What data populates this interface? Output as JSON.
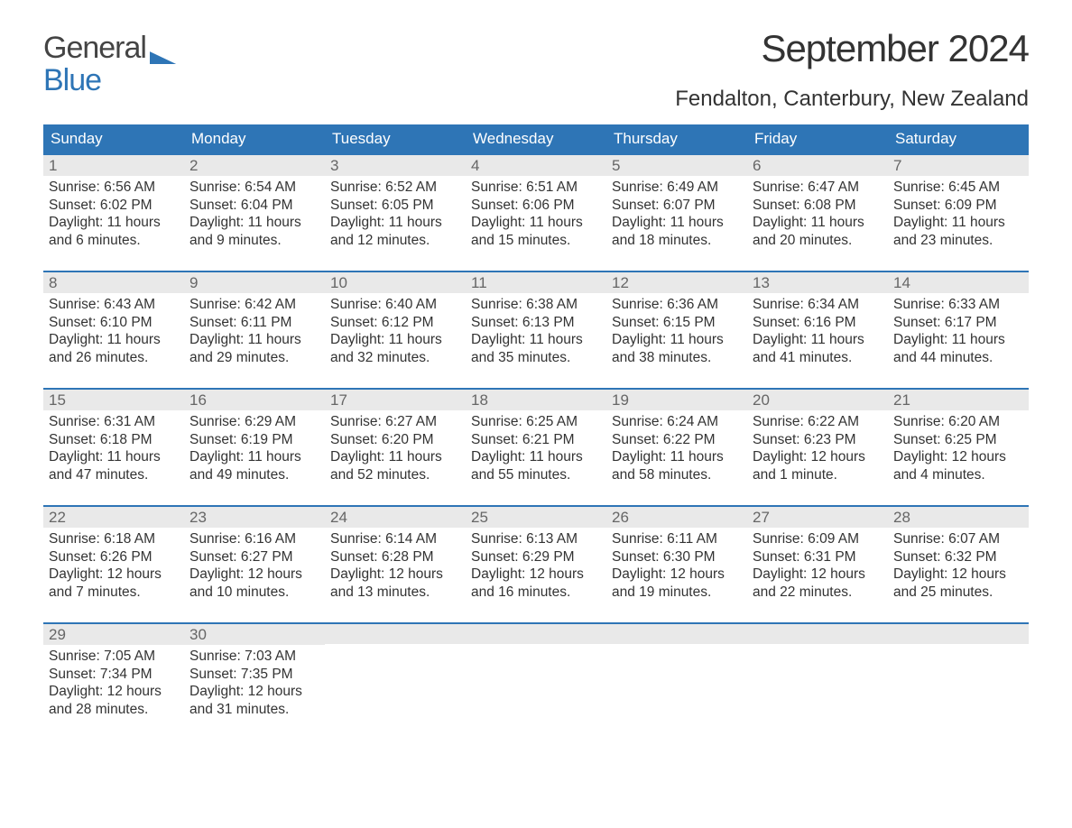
{
  "brand": {
    "top": "General",
    "bottom": "Blue",
    "top_color": "#444444",
    "bottom_color": "#2e75b6"
  },
  "title": "September 2024",
  "location": "Fendalton, Canterbury, New Zealand",
  "colors": {
    "header_bg": "#2e75b6",
    "header_text": "#ffffff",
    "daynum_bg": "#e9e9e9",
    "daynum_text": "#666666",
    "body_text": "#333333",
    "week_divider": "#2e75b6",
    "page_bg": "#ffffff"
  },
  "typography": {
    "title_fontsize": 42,
    "location_fontsize": 24,
    "header_fontsize": 17,
    "body_fontsize": 15.5
  },
  "day_headers": [
    "Sunday",
    "Monday",
    "Tuesday",
    "Wednesday",
    "Thursday",
    "Friday",
    "Saturday"
  ],
  "weeks": [
    [
      {
        "n": "1",
        "sunrise": "Sunrise: 6:56 AM",
        "sunset": "Sunset: 6:02 PM",
        "day1": "Daylight: 11 hours",
        "day2": "and 6 minutes."
      },
      {
        "n": "2",
        "sunrise": "Sunrise: 6:54 AM",
        "sunset": "Sunset: 6:04 PM",
        "day1": "Daylight: 11 hours",
        "day2": "and 9 minutes."
      },
      {
        "n": "3",
        "sunrise": "Sunrise: 6:52 AM",
        "sunset": "Sunset: 6:05 PM",
        "day1": "Daylight: 11 hours",
        "day2": "and 12 minutes."
      },
      {
        "n": "4",
        "sunrise": "Sunrise: 6:51 AM",
        "sunset": "Sunset: 6:06 PM",
        "day1": "Daylight: 11 hours",
        "day2": "and 15 minutes."
      },
      {
        "n": "5",
        "sunrise": "Sunrise: 6:49 AM",
        "sunset": "Sunset: 6:07 PM",
        "day1": "Daylight: 11 hours",
        "day2": "and 18 minutes."
      },
      {
        "n": "6",
        "sunrise": "Sunrise: 6:47 AM",
        "sunset": "Sunset: 6:08 PM",
        "day1": "Daylight: 11 hours",
        "day2": "and 20 minutes."
      },
      {
        "n": "7",
        "sunrise": "Sunrise: 6:45 AM",
        "sunset": "Sunset: 6:09 PM",
        "day1": "Daylight: 11 hours",
        "day2": "and 23 minutes."
      }
    ],
    [
      {
        "n": "8",
        "sunrise": "Sunrise: 6:43 AM",
        "sunset": "Sunset: 6:10 PM",
        "day1": "Daylight: 11 hours",
        "day2": "and 26 minutes."
      },
      {
        "n": "9",
        "sunrise": "Sunrise: 6:42 AM",
        "sunset": "Sunset: 6:11 PM",
        "day1": "Daylight: 11 hours",
        "day2": "and 29 minutes."
      },
      {
        "n": "10",
        "sunrise": "Sunrise: 6:40 AM",
        "sunset": "Sunset: 6:12 PM",
        "day1": "Daylight: 11 hours",
        "day2": "and 32 minutes."
      },
      {
        "n": "11",
        "sunrise": "Sunrise: 6:38 AM",
        "sunset": "Sunset: 6:13 PM",
        "day1": "Daylight: 11 hours",
        "day2": "and 35 minutes."
      },
      {
        "n": "12",
        "sunrise": "Sunrise: 6:36 AM",
        "sunset": "Sunset: 6:15 PM",
        "day1": "Daylight: 11 hours",
        "day2": "and 38 minutes."
      },
      {
        "n": "13",
        "sunrise": "Sunrise: 6:34 AM",
        "sunset": "Sunset: 6:16 PM",
        "day1": "Daylight: 11 hours",
        "day2": "and 41 minutes."
      },
      {
        "n": "14",
        "sunrise": "Sunrise: 6:33 AM",
        "sunset": "Sunset: 6:17 PM",
        "day1": "Daylight: 11 hours",
        "day2": "and 44 minutes."
      }
    ],
    [
      {
        "n": "15",
        "sunrise": "Sunrise: 6:31 AM",
        "sunset": "Sunset: 6:18 PM",
        "day1": "Daylight: 11 hours",
        "day2": "and 47 minutes."
      },
      {
        "n": "16",
        "sunrise": "Sunrise: 6:29 AM",
        "sunset": "Sunset: 6:19 PM",
        "day1": "Daylight: 11 hours",
        "day2": "and 49 minutes."
      },
      {
        "n": "17",
        "sunrise": "Sunrise: 6:27 AM",
        "sunset": "Sunset: 6:20 PM",
        "day1": "Daylight: 11 hours",
        "day2": "and 52 minutes."
      },
      {
        "n": "18",
        "sunrise": "Sunrise: 6:25 AM",
        "sunset": "Sunset: 6:21 PM",
        "day1": "Daylight: 11 hours",
        "day2": "and 55 minutes."
      },
      {
        "n": "19",
        "sunrise": "Sunrise: 6:24 AM",
        "sunset": "Sunset: 6:22 PM",
        "day1": "Daylight: 11 hours",
        "day2": "and 58 minutes."
      },
      {
        "n": "20",
        "sunrise": "Sunrise: 6:22 AM",
        "sunset": "Sunset: 6:23 PM",
        "day1": "Daylight: 12 hours",
        "day2": "and 1 minute."
      },
      {
        "n": "21",
        "sunrise": "Sunrise: 6:20 AM",
        "sunset": "Sunset: 6:25 PM",
        "day1": "Daylight: 12 hours",
        "day2": "and 4 minutes."
      }
    ],
    [
      {
        "n": "22",
        "sunrise": "Sunrise: 6:18 AM",
        "sunset": "Sunset: 6:26 PM",
        "day1": "Daylight: 12 hours",
        "day2": "and 7 minutes."
      },
      {
        "n": "23",
        "sunrise": "Sunrise: 6:16 AM",
        "sunset": "Sunset: 6:27 PM",
        "day1": "Daylight: 12 hours",
        "day2": "and 10 minutes."
      },
      {
        "n": "24",
        "sunrise": "Sunrise: 6:14 AM",
        "sunset": "Sunset: 6:28 PM",
        "day1": "Daylight: 12 hours",
        "day2": "and 13 minutes."
      },
      {
        "n": "25",
        "sunrise": "Sunrise: 6:13 AM",
        "sunset": "Sunset: 6:29 PM",
        "day1": "Daylight: 12 hours",
        "day2": "and 16 minutes."
      },
      {
        "n": "26",
        "sunrise": "Sunrise: 6:11 AM",
        "sunset": "Sunset: 6:30 PM",
        "day1": "Daylight: 12 hours",
        "day2": "and 19 minutes."
      },
      {
        "n": "27",
        "sunrise": "Sunrise: 6:09 AM",
        "sunset": "Sunset: 6:31 PM",
        "day1": "Daylight: 12 hours",
        "day2": "and 22 minutes."
      },
      {
        "n": "28",
        "sunrise": "Sunrise: 6:07 AM",
        "sunset": "Sunset: 6:32 PM",
        "day1": "Daylight: 12 hours",
        "day2": "and 25 minutes."
      }
    ],
    [
      {
        "n": "29",
        "sunrise": "Sunrise: 7:05 AM",
        "sunset": "Sunset: 7:34 PM",
        "day1": "Daylight: 12 hours",
        "day2": "and 28 minutes."
      },
      {
        "n": "30",
        "sunrise": "Sunrise: 7:03 AM",
        "sunset": "Sunset: 7:35 PM",
        "day1": "Daylight: 12 hours",
        "day2": "and 31 minutes."
      },
      {
        "empty": true
      },
      {
        "empty": true
      },
      {
        "empty": true
      },
      {
        "empty": true
      },
      {
        "empty": true
      }
    ]
  ]
}
